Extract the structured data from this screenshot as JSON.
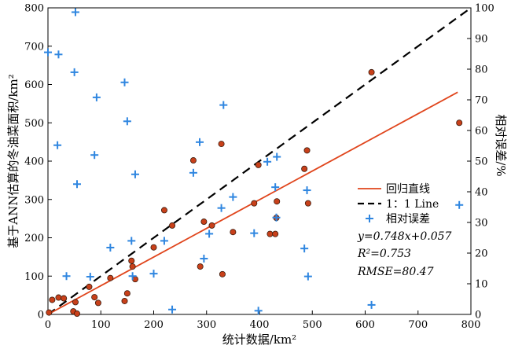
{
  "chart_data": {
    "type": "scatter",
    "xlabel": "统计数据/km²",
    "ylabel": "基于ANN估算的冬油菜面积/km²",
    "ylabel_right": "相对误差/%",
    "xlim": [
      0,
      800
    ],
    "ylim": [
      0,
      800
    ],
    "ylim_right": [
      0,
      100
    ],
    "x_ticks": [
      "0",
      "100",
      "200",
      "300",
      "400",
      "500",
      "600",
      "700",
      "800"
    ],
    "y_ticks": [
      "0",
      "100",
      "200",
      "300",
      "400",
      "500",
      "600",
      "700",
      "800"
    ],
    "y_ticks_right": [
      "0",
      "10",
      "20",
      "30",
      "40",
      "50",
      "60",
      "70",
      "80",
      "90",
      "100"
    ],
    "grid": false,
    "legend_position": "right",
    "legend": [
      {
        "label": "回归直线",
        "kind": "line",
        "color": "#e0451c"
      },
      {
        "label": "1：1 Line",
        "kind": "dash",
        "color": "#000000"
      },
      {
        "label": "相对误差",
        "kind": "plus",
        "color": "#2f86e0"
      }
    ],
    "stats": {
      "equation": "y=0.748x+0.057",
      "r2": "R²=0.753",
      "rmse": "RMSE=80.47"
    },
    "colors": {
      "points": "#c8401a",
      "regression": "#e0451c",
      "error": "#2f86e0",
      "identity": "#000000"
    },
    "regression_line": {
      "x": [
        0,
        775
      ],
      "y": [
        0.057,
        579.8
      ]
    },
    "identity_line": {
      "x": [
        0,
        800
      ],
      "y": [
        0,
        800
      ]
    },
    "series": [
      {
        "kind": "estimate",
        "axis": "left",
        "x": [
          2,
          8,
          20,
          30,
          48,
          52,
          55,
          78,
          88,
          95,
          118,
          145,
          150,
          158,
          160,
          165,
          200,
          220,
          235,
          275,
          288,
          295,
          310,
          328,
          330,
          350,
          390,
          398,
          420,
          430,
          432,
          433,
          485,
          490,
          492,
          612,
          778
        ],
        "y": [
          5,
          38,
          44,
          42,
          8,
          32,
          2,
          72,
          45,
          30,
          95,
          35,
          55,
          140,
          125,
          92,
          175,
          272,
          232,
          402,
          125,
          242,
          232,
          445,
          105,
          215,
          290,
          390,
          210,
          210,
          252,
          295,
          380,
          428,
          290,
          632,
          500
        ]
      },
      {
        "kind": "relative_error",
        "axis": "right",
        "x": [
          0,
          18,
          20,
          35,
          50,
          52,
          55,
          80,
          88,
          92,
          118,
          145,
          150,
          158,
          160,
          165,
          200,
          220,
          235,
          275,
          287,
          295,
          305,
          328,
          332,
          350,
          390,
          398,
          415,
          430,
          432,
          433,
          485,
          490,
          492,
          612,
          778
        ],
        "y": [
          85.5,
          55.2,
          84.8,
          12.5,
          79,
          98.6,
          42.5,
          12.3,
          52,
          70.8,
          21.8,
          75.7,
          63,
          24,
          12.5,
          45.7,
          13.3,
          24,
          1.6,
          46.2,
          56.2,
          18.2,
          26.3,
          34.7,
          68.3,
          38.3,
          26.5,
          1.2,
          49.8,
          41.5,
          31.6,
          51.4,
          21.5,
          40.5,
          12.4,
          3.1,
          35.7
        ]
      }
    ]
  }
}
